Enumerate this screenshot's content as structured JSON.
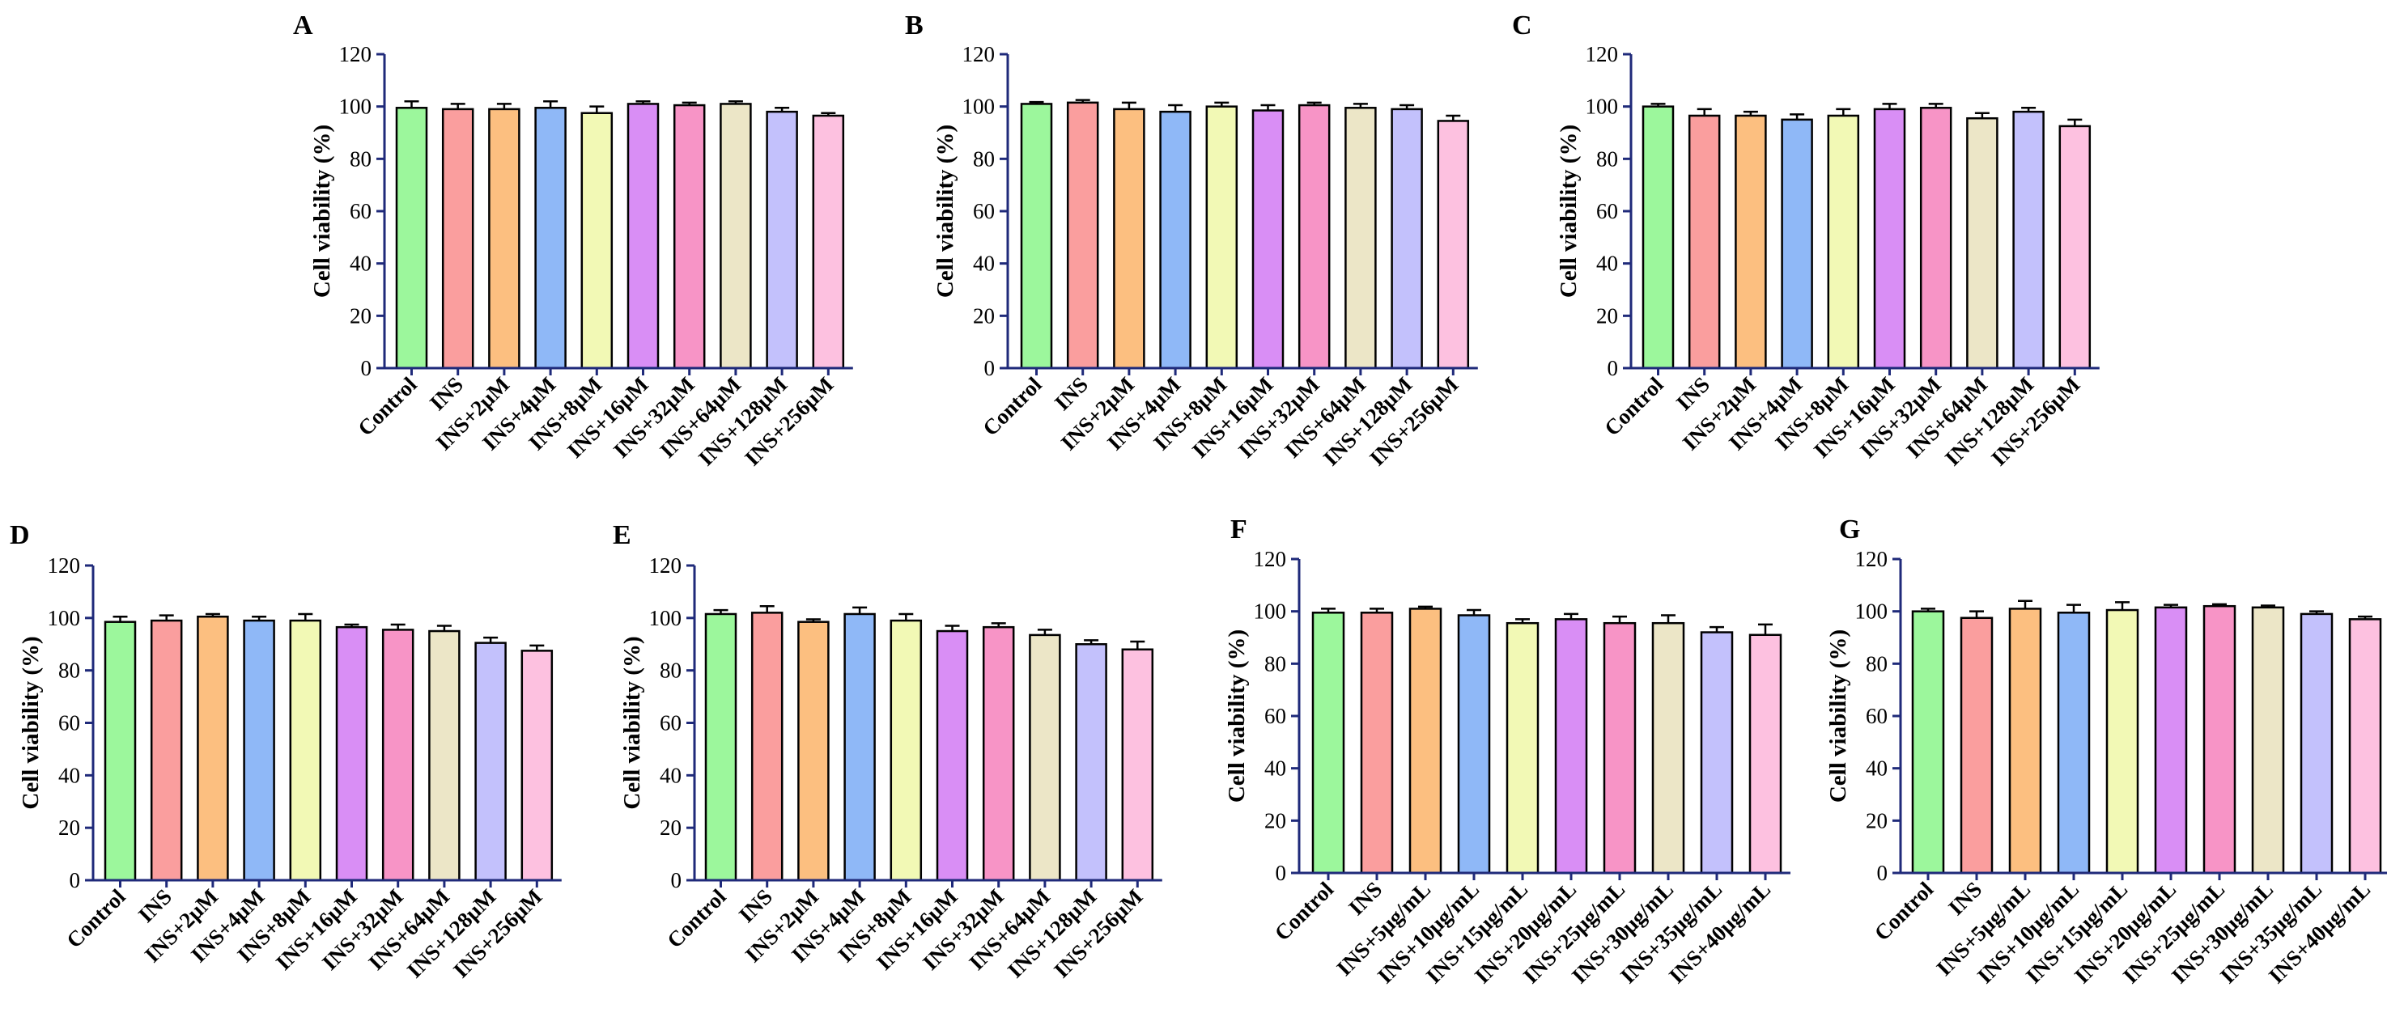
{
  "colors": {
    "axis": "#1f2a7a",
    "bar_edge": "#000000",
    "bar_fills": [
      "#9cf79c",
      "#fa9e9e",
      "#fcbf80",
      "#8fb8f7",
      "#f2f9b5",
      "#d98ef5",
      "#f794c6",
      "#ece6c7",
      "#c3c1fc",
      "#fdc1e0"
    ]
  },
  "chart_data": [
    {
      "panel": "A",
      "type": "bar",
      "ylabel": "Cell viability (%)",
      "ylim": [
        0,
        120
      ],
      "yticks": [
        "0",
        "20",
        "40",
        "60",
        "80",
        "100",
        "120"
      ],
      "categories": [
        "Control",
        "INS",
        "INS+2μM",
        "INS+4μM",
        "INS+8μM",
        "INS+16μM",
        "INS+32μM",
        "INS+64μM",
        "INS+128μM",
        "INS+256μM"
      ],
      "values": [
        99.5,
        99,
        99,
        99.5,
        97.5,
        101,
        100.5,
        101,
        98,
        96.5
      ],
      "errors": [
        2.5,
        2,
        2,
        2.5,
        2.5,
        1,
        1,
        1,
        1.5,
        1
      ]
    },
    {
      "panel": "B",
      "type": "bar",
      "ylabel": "Cell viability (%)",
      "ylim": [
        0,
        120
      ],
      "yticks": [
        "0",
        "20",
        "40",
        "60",
        "80",
        "100",
        "120"
      ],
      "categories": [
        "Control",
        "INS",
        "INS+2μM",
        "INS+4μM",
        "INS+8μM",
        "INS+16μM",
        "INS+32μM",
        "INS+64μM",
        "INS+128μM",
        "INS+256μM"
      ],
      "values": [
        101,
        101.5,
        99,
        98,
        100,
        98.5,
        100.5,
        99.5,
        99,
        94.5
      ],
      "errors": [
        0.7,
        1,
        2.5,
        2.5,
        1.5,
        2,
        1,
        1.5,
        1.5,
        2
      ]
    },
    {
      "panel": "C",
      "type": "bar",
      "ylabel": "Cell viability (%)",
      "ylim": [
        0,
        120
      ],
      "yticks": [
        "0",
        "20",
        "40",
        "60",
        "80",
        "100",
        "120"
      ],
      "categories": [
        "Control",
        "INS",
        "INS+2μM",
        "INS+4μM",
        "INS+8μM",
        "INS+16μM",
        "INS+32μM",
        "INS+64μM",
        "INS+128μM",
        "INS+256μM"
      ],
      "values": [
        100,
        96.5,
        96.5,
        95,
        96.5,
        99,
        99.5,
        95.5,
        98,
        92.5
      ],
      "errors": [
        1,
        2.5,
        1.5,
        2,
        2.5,
        2,
        1.5,
        2,
        1.5,
        2.5
      ]
    },
    {
      "panel": "D",
      "type": "bar",
      "ylabel": "Cell viability (%)",
      "ylim": [
        0,
        120
      ],
      "yticks": [
        "0",
        "20",
        "40",
        "60",
        "80",
        "100",
        "120"
      ],
      "categories": [
        "Control",
        "INS",
        "INS+2μM",
        "INS+4μM",
        "INS+8μM",
        "INS+16μM",
        "INS+32μM",
        "INS+64μM",
        "INS+128μM",
        "INS+256μM"
      ],
      "values": [
        98.5,
        99,
        100.5,
        99,
        99,
        96.5,
        95.5,
        95,
        90.5,
        87.5
      ],
      "errors": [
        2,
        2,
        1,
        1.5,
        2.5,
        1,
        2,
        2,
        2,
        2
      ]
    },
    {
      "panel": "E",
      "type": "bar",
      "ylabel": "Cell viability (%)",
      "ylim": [
        0,
        120
      ],
      "yticks": [
        "0",
        "20",
        "40",
        "60",
        "80",
        "100",
        "120"
      ],
      "categories": [
        "Control",
        "INS",
        "INS+2μM",
        "INS+4μM",
        "INS+8μM",
        "INS+16μM",
        "INS+32μM",
        "INS+64μM",
        "INS+128μM",
        "INS+256μM"
      ],
      "values": [
        101.5,
        102,
        98.5,
        101.5,
        99,
        95,
        96.5,
        93.5,
        90,
        88
      ],
      "errors": [
        1.5,
        2.5,
        1,
        2.5,
        2.5,
        2,
        1.5,
        2,
        1.5,
        3
      ]
    },
    {
      "panel": "F",
      "type": "bar",
      "ylabel": "Cell viability (%)",
      "ylim": [
        0,
        120
      ],
      "yticks": [
        "0",
        "20",
        "40",
        "60",
        "80",
        "100",
        "120"
      ],
      "categories": [
        "Control",
        "INS",
        "INS+5μg/mL",
        "INS+10μg/mL",
        "INS+15μg/mL",
        "INS+20μg/mL",
        "INS+25μg/mL",
        "INS+30μg/mL",
        "INS+35μg/mL",
        "INS+40μg/mL"
      ],
      "values": [
        99.5,
        99.5,
        101,
        98.5,
        95.5,
        97,
        95.5,
        95.5,
        92,
        91
      ],
      "errors": [
        1.5,
        1.5,
        0.8,
        2,
        1.5,
        2,
        2.5,
        3,
        2,
        4
      ]
    },
    {
      "panel": "G",
      "type": "bar",
      "ylabel": "Cell viability (%)",
      "ylim": [
        0,
        120
      ],
      "yticks": [
        "0",
        "20",
        "40",
        "60",
        "80",
        "100",
        "120"
      ],
      "categories": [
        "Control",
        "INS",
        "INS+5μg/mL",
        "INS+10μg/mL",
        "INS+15μg/mL",
        "INS+20μg/mL",
        "INS+25μg/mL",
        "INS+30μg/mL",
        "INS+35μg/mL",
        "INS+40μg/mL"
      ],
      "values": [
        100,
        97.5,
        101,
        99.5,
        100.5,
        101.5,
        102,
        101.5,
        99,
        97
      ],
      "errors": [
        1,
        2.5,
        3,
        3,
        3,
        1,
        0.7,
        0.7,
        1,
        1
      ]
    }
  ]
}
